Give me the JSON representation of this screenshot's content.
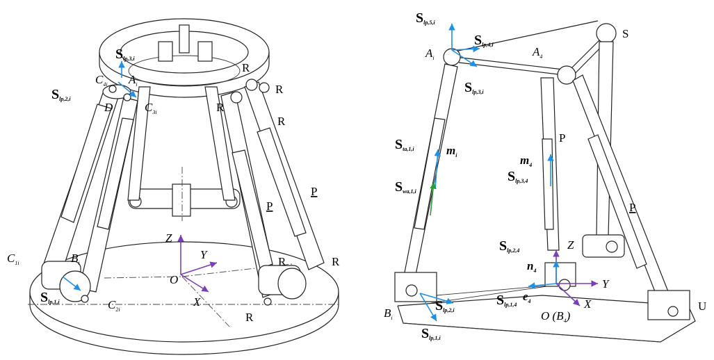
{
  "left": {
    "S_lp3i": {
      "main": "S",
      "sub": "lp,3,i"
    },
    "S_lp2i": {
      "main": "S",
      "sub": "lp,2,i"
    },
    "S_lp1i": {
      "main": "S",
      "sub": "lp,1,i"
    },
    "C4i": "C",
    "C4i_sub": "4i",
    "Ai": "A",
    "Ai_sub": "i",
    "D": "D",
    "C3i": "C",
    "C3i_sub": "3i",
    "C1i": "C",
    "C1i_sub": "1i",
    "Bi": "B",
    "Bi_sub": "i",
    "C2i": "C",
    "C2i_sub": "2i",
    "R": "R",
    "P": "P",
    "Z": "Z",
    "Y": "Y",
    "O": "O",
    "X": "X"
  },
  "right": {
    "S_lp5i": {
      "main": "S",
      "sub": "lp,5,i"
    },
    "S_lp4i": {
      "main": "S",
      "sub": "lp,4,i"
    },
    "S_lp3i": {
      "main": "S",
      "sub": "lp,3,i"
    },
    "S_ta1i": {
      "main": "S",
      "sub": "ta,1,i"
    },
    "S_wa1i": {
      "main": "S",
      "sub": "wa,1,i"
    },
    "S_lp34": {
      "main": "S",
      "sub": "lp,3,4"
    },
    "S_lp24": {
      "main": "S",
      "sub": "lp,2,4"
    },
    "S_lp14": {
      "main": "S",
      "sub": "lp,1,4"
    },
    "S_lp2i": {
      "main": "S",
      "sub": "lp,2,i"
    },
    "S_lp1i": {
      "main": "S",
      "sub": "lp,1,i"
    },
    "Ai": "A",
    "Ai_sub": "i",
    "A4": "A",
    "A4_sub": "4",
    "S": "S",
    "mi": "m",
    "mi_sub": "i",
    "m4": "m",
    "m4_sub": "4",
    "P": "P",
    "Z": "Z",
    "n4": "n",
    "n4_sub": "4",
    "Y": "Y",
    "e4": "e",
    "e4_sub": "4",
    "X": "X",
    "O_B4": "O (B",
    "O_B4_sub": "4",
    "O_B4_close": ")",
    "Bi": "B",
    "Bi_sub": "i",
    "U": "U"
  }
}
